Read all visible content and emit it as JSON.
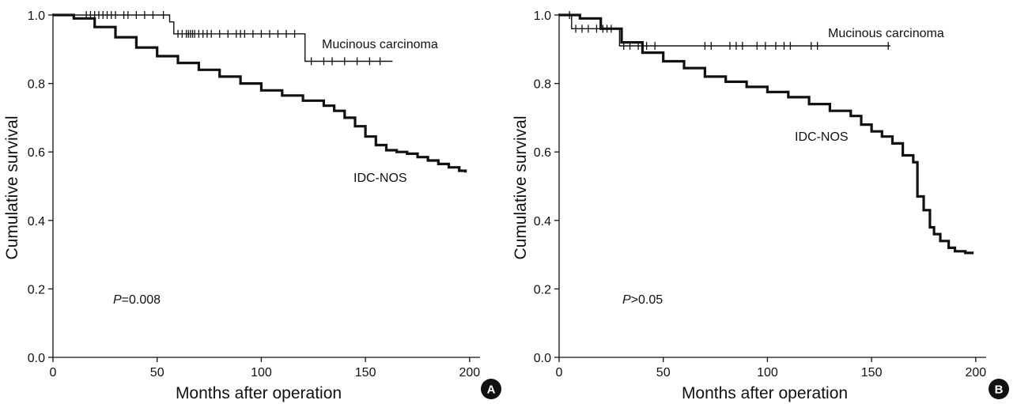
{
  "chart_data": [
    {
      "panel": "A",
      "type": "line",
      "subtype": "kaplan-meier",
      "xlabel": "Months after operation",
      "ylabel": "Cumulative survival",
      "xlim": [
        0,
        205
      ],
      "ylim": [
        0,
        1.0
      ],
      "xticks": [
        "0",
        "50",
        "100",
        "150",
        "200"
      ],
      "yticks": [
        "0.0",
        "0.2",
        "0.4",
        "0.6",
        "0.8",
        "1.0"
      ],
      "grid": false,
      "p_value": {
        "prefix": "P",
        "value": "=0.008"
      },
      "series": [
        {
          "name": "Mucinous carcinoma",
          "x": [
            0,
            56,
            58,
            119,
            121,
            163
          ],
          "y": [
            1.0,
            0.98,
            0.945,
            0.945,
            0.865,
            0.865
          ],
          "censor_x": [
            16,
            18,
            20,
            22,
            24,
            26,
            28,
            30,
            34,
            36,
            40,
            44,
            48,
            53,
            60,
            62,
            64,
            65,
            66,
            67,
            68,
            70,
            72,
            74,
            76,
            80,
            84,
            88,
            90,
            92,
            96,
            100,
            104,
            108,
            112,
            116,
            124,
            130,
            134,
            140,
            146,
            152,
            157
          ]
        },
        {
          "name": "IDC-NOS",
          "x": [
            0,
            10,
            20,
            30,
            40,
            50,
            60,
            70,
            80,
            90,
            100,
            110,
            120,
            130,
            135,
            140,
            145,
            150,
            155,
            160,
            165,
            170,
            175,
            180,
            185,
            190,
            195,
            198
          ],
          "y": [
            1.0,
            0.99,
            0.965,
            0.935,
            0.905,
            0.88,
            0.86,
            0.84,
            0.82,
            0.8,
            0.78,
            0.765,
            0.75,
            0.735,
            0.72,
            0.7,
            0.675,
            0.645,
            0.62,
            0.605,
            0.6,
            0.595,
            0.585,
            0.575,
            0.565,
            0.555,
            0.545,
            0.54
          ]
        }
      ]
    },
    {
      "panel": "B",
      "type": "line",
      "subtype": "kaplan-meier",
      "xlabel": "Months after operation",
      "ylabel": "Cumulative survival",
      "xlim": [
        0,
        205
      ],
      "ylim": [
        0,
        1.0
      ],
      "xticks": [
        "0",
        "50",
        "100",
        "150",
        "200"
      ],
      "yticks": [
        "0.0",
        "0.2",
        "0.4",
        "0.6",
        "0.8",
        "1.0"
      ],
      "grid": false,
      "p_value": {
        "prefix": "P",
        "value": ">0.05"
      },
      "series": [
        {
          "name": "Mucinous carcinoma",
          "x": [
            0,
            4,
            6,
            27,
            29,
            159
          ],
          "y": [
            1.0,
            1.0,
            0.96,
            0.96,
            0.91,
            0.91
          ],
          "censor_x": [
            5,
            8,
            11,
            14,
            18,
            21,
            23,
            25,
            31,
            34,
            38,
            42,
            46,
            70,
            73,
            82,
            85,
            88,
            95,
            99,
            104,
            108,
            111,
            121,
            124,
            158
          ]
        },
        {
          "name": "IDC-NOS",
          "x": [
            0,
            10,
            20,
            30,
            40,
            50,
            60,
            70,
            80,
            90,
            100,
            110,
            120,
            130,
            140,
            145,
            150,
            155,
            160,
            165,
            170,
            172,
            175,
            178,
            180,
            183,
            187,
            190,
            195,
            199
          ],
          "y": [
            1.0,
            0.99,
            0.96,
            0.92,
            0.89,
            0.865,
            0.845,
            0.82,
            0.805,
            0.79,
            0.775,
            0.76,
            0.74,
            0.72,
            0.705,
            0.68,
            0.66,
            0.645,
            0.625,
            0.59,
            0.57,
            0.47,
            0.43,
            0.38,
            0.36,
            0.34,
            0.32,
            0.31,
            0.305,
            0.305
          ]
        }
      ]
    }
  ]
}
